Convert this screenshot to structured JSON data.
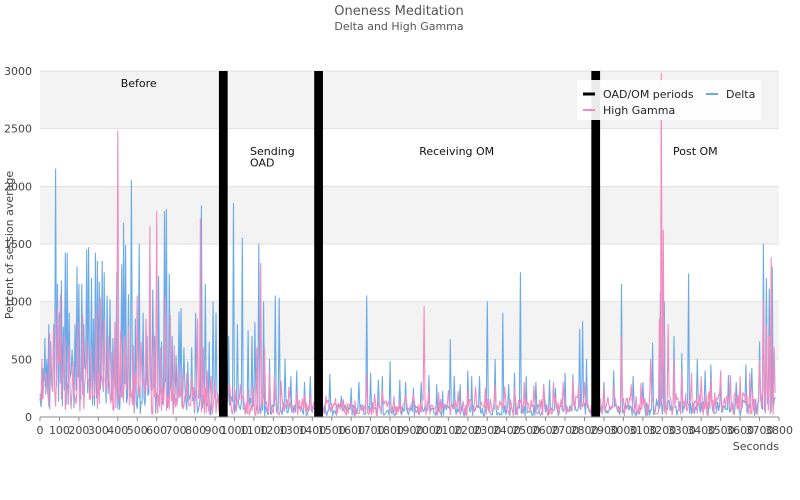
{
  "chart_data": {
    "type": "line",
    "title": "Oneness Meditation",
    "subtitle": "Delta and High Gamma",
    "xlabel": "Seconds",
    "ylabel": "Percent of session average",
    "xlim": [
      0,
      3800
    ],
    "ylim": [
      0,
      3000
    ],
    "x_ticks": [
      "0",
      "100",
      "200",
      "300",
      "400",
      "500",
      "600",
      "700",
      "800",
      "900",
      "1000",
      "1100",
      "1200",
      "1300",
      "1400",
      "1500",
      "1600",
      "1700",
      "1800",
      "1900",
      "2000",
      "2100",
      "2200",
      "2300",
      "2400",
      "2500",
      "2600",
      "2700",
      "2800",
      "2900",
      "3000",
      "3100",
      "3200",
      "3300",
      "3400",
      "3500",
      "3600",
      "3700",
      "3800"
    ],
    "y_ticks": [
      "0",
      "500",
      "1000",
      "1500",
      "2000",
      "2500",
      "3000"
    ],
    "legend": {
      "placement": "top-right",
      "entries": [
        {
          "label": "OAD/OM periods",
          "color": "#000000"
        },
        {
          "label": "Delta",
          "color": "#6aaae8"
        },
        {
          "label": "High Gamma",
          "color": "#f28bbf"
        }
      ]
    },
    "periods": [
      {
        "start": 920,
        "end": 965
      },
      {
        "start": 1410,
        "end": 1455
      },
      {
        "start": 2835,
        "end": 2880
      }
    ],
    "annotations": [
      {
        "text": "Before",
        "x": 415,
        "y": 2860
      },
      {
        "text": "Sending",
        "x": 1080,
        "y": 2270
      },
      {
        "text": "OAD",
        "x": 1080,
        "y": 2170
      },
      {
        "text": "Receiving OM",
        "x": 1950,
        "y": 2270
      },
      {
        "text": "Post OM",
        "x": 3255,
        "y": 2270
      }
    ],
    "series": [
      {
        "name": "Delta",
        "color": "#6aaae8",
        "baseline": [
          [
            0,
            120
          ],
          [
            200,
            230
          ],
          [
            400,
            200
          ],
          [
            600,
            170
          ],
          [
            800,
            110
          ],
          [
            1000,
            90
          ],
          [
            1200,
            65
          ],
          [
            1400,
            60
          ],
          [
            1600,
            55
          ],
          [
            1800,
            50
          ],
          [
            2000,
            50
          ],
          [
            2200,
            50
          ],
          [
            2400,
            55
          ],
          [
            2600,
            55
          ],
          [
            2800,
            60
          ],
          [
            3000,
            60
          ],
          [
            3200,
            80
          ],
          [
            3400,
            70
          ],
          [
            3600,
            70
          ],
          [
            3780,
            90
          ]
        ],
        "spikes": [
          [
            15,
            420
          ],
          [
            25,
            680
          ],
          [
            35,
            500
          ],
          [
            45,
            800
          ],
          [
            55,
            650
          ],
          [
            70,
            800
          ],
          [
            80,
            2150
          ],
          [
            90,
            1150
          ],
          [
            100,
            900
          ],
          [
            110,
            1180
          ],
          [
            120,
            780
          ],
          [
            130,
            1420
          ],
          [
            140,
            1420
          ],
          [
            150,
            900
          ],
          [
            165,
            580
          ],
          [
            180,
            800
          ],
          [
            190,
            1300
          ],
          [
            200,
            1150
          ],
          [
            215,
            1150
          ],
          [
            225,
            800
          ],
          [
            240,
            1450
          ],
          [
            250,
            1470
          ],
          [
            265,
            1200
          ],
          [
            275,
            850
          ],
          [
            285,
            1420
          ],
          [
            295,
            1350
          ],
          [
            305,
            1170
          ],
          [
            320,
            1350
          ],
          [
            330,
            1250
          ],
          [
            345,
            1050
          ],
          [
            360,
            1020
          ],
          [
            375,
            680
          ],
          [
            395,
            1250
          ],
          [
            420,
            1320
          ],
          [
            430,
            1680
          ],
          [
            440,
            1490
          ],
          [
            455,
            1060
          ],
          [
            470,
            2050
          ],
          [
            490,
            850
          ],
          [
            510,
            1500
          ],
          [
            530,
            900
          ],
          [
            550,
            700
          ],
          [
            565,
            1120
          ],
          [
            580,
            1100
          ],
          [
            590,
            700
          ],
          [
            610,
            1220
          ],
          [
            625,
            650
          ],
          [
            640,
            1780
          ],
          [
            650,
            1800
          ],
          [
            665,
            1240
          ],
          [
            680,
            700
          ],
          [
            700,
            530
          ],
          [
            715,
            910
          ],
          [
            725,
            940
          ],
          [
            740,
            600
          ],
          [
            760,
            480
          ],
          [
            780,
            600
          ],
          [
            800,
            900
          ],
          [
            830,
            1830
          ],
          [
            850,
            1150
          ],
          [
            870,
            650
          ],
          [
            890,
            1000
          ],
          [
            905,
            900
          ],
          [
            930,
            780
          ],
          [
            950,
            1250
          ],
          [
            970,
            700
          ],
          [
            995,
            1850
          ],
          [
            1015,
            800
          ],
          [
            1040,
            1550
          ],
          [
            1070,
            750
          ],
          [
            1090,
            700
          ],
          [
            1105,
            820
          ],
          [
            1125,
            1500
          ],
          [
            1150,
            1000
          ],
          [
            1180,
            500
          ],
          [
            1210,
            1050
          ],
          [
            1230,
            1030
          ],
          [
            1260,
            500
          ],
          [
            1290,
            350
          ],
          [
            1320,
            400
          ],
          [
            1360,
            300
          ],
          [
            1390,
            350
          ],
          [
            1420,
            430
          ],
          [
            1490,
            370
          ],
          [
            1550,
            180
          ],
          [
            1600,
            250
          ],
          [
            1640,
            300
          ],
          [
            1680,
            1050
          ],
          [
            1700,
            380
          ],
          [
            1740,
            320
          ],
          [
            1760,
            350
          ],
          [
            1800,
            480
          ],
          [
            1850,
            320
          ],
          [
            1880,
            300
          ],
          [
            1920,
            250
          ],
          [
            1960,
            300
          ],
          [
            2000,
            360
          ],
          [
            2040,
            280
          ],
          [
            2070,
            220
          ],
          [
            2110,
            670
          ],
          [
            2130,
            350
          ],
          [
            2160,
            280
          ],
          [
            2200,
            400
          ],
          [
            2220,
            350
          ],
          [
            2260,
            350
          ],
          [
            2300,
            1000
          ],
          [
            2340,
            500
          ],
          [
            2380,
            900
          ],
          [
            2410,
            280
          ],
          [
            2440,
            380
          ],
          [
            2470,
            1250
          ],
          [
            2500,
            350
          ],
          [
            2550,
            300
          ],
          [
            2590,
            280
          ],
          [
            2620,
            320
          ],
          [
            2650,
            250
          ],
          [
            2700,
            380
          ],
          [
            2740,
            370
          ],
          [
            2775,
            760
          ],
          [
            2790,
            830
          ],
          [
            2810,
            500
          ],
          [
            2900,
            300
          ],
          [
            2950,
            400
          ],
          [
            2990,
            1150
          ],
          [
            3050,
            350
          ],
          [
            3100,
            300
          ],
          [
            3150,
            640
          ],
          [
            3190,
            1080
          ],
          [
            3210,
            1000
          ],
          [
            3260,
            700
          ],
          [
            3300,
            550
          ],
          [
            3335,
            1240
          ],
          [
            3380,
            500
          ],
          [
            3420,
            400
          ],
          [
            3450,
            450
          ],
          [
            3500,
            380
          ],
          [
            3540,
            360
          ],
          [
            3580,
            300
          ],
          [
            3630,
            450
          ],
          [
            3660,
            420
          ],
          [
            3700,
            650
          ],
          [
            3720,
            1500
          ],
          [
            3735,
            1200
          ],
          [
            3750,
            1110
          ],
          [
            3765,
            1300
          ]
        ]
      },
      {
        "name": "High Gamma",
        "color": "#f28bbf",
        "baseline": [
          [
            0,
            150
          ],
          [
            100,
            250
          ],
          [
            200,
            200
          ],
          [
            400,
            200
          ],
          [
            600,
            160
          ],
          [
            800,
            140
          ],
          [
            1000,
            110
          ],
          [
            1200,
            90
          ],
          [
            1400,
            75
          ],
          [
            1600,
            70
          ],
          [
            1800,
            70
          ],
          [
            2000,
            75
          ],
          [
            2200,
            80
          ],
          [
            2400,
            80
          ],
          [
            2600,
            85
          ],
          [
            2800,
            90
          ],
          [
            3000,
            85
          ],
          [
            3200,
            100
          ],
          [
            3400,
            110
          ],
          [
            3600,
            110
          ],
          [
            3780,
            150
          ]
        ],
        "spikes": [
          [
            10,
            500
          ],
          [
            30,
            380
          ],
          [
            50,
            720
          ],
          [
            70,
            800
          ],
          [
            90,
            950
          ],
          [
            105,
            1060
          ],
          [
            125,
            700
          ],
          [
            150,
            620
          ],
          [
            170,
            480
          ],
          [
            195,
            820
          ],
          [
            220,
            880
          ],
          [
            240,
            660
          ],
          [
            265,
            580
          ],
          [
            290,
            940
          ],
          [
            310,
            1030
          ],
          [
            330,
            850
          ],
          [
            350,
            700
          ],
          [
            370,
            560
          ],
          [
            385,
            820
          ],
          [
            400,
            2480
          ],
          [
            415,
            750
          ],
          [
            435,
            700
          ],
          [
            455,
            780
          ],
          [
            480,
            620
          ],
          [
            500,
            1050
          ],
          [
            520,
            650
          ],
          [
            545,
            850
          ],
          [
            565,
            1650
          ],
          [
            585,
            700
          ],
          [
            600,
            1780
          ],
          [
            620,
            600
          ],
          [
            645,
            1050
          ],
          [
            670,
            880
          ],
          [
            690,
            620
          ],
          [
            710,
            450
          ],
          [
            730,
            400
          ],
          [
            755,
            380
          ],
          [
            780,
            350
          ],
          [
            810,
            850
          ],
          [
            825,
            1720
          ],
          [
            840,
            600
          ],
          [
            860,
            400
          ],
          [
            880,
            350
          ],
          [
            900,
            300
          ],
          [
            945,
            330
          ],
          [
            975,
            290
          ],
          [
            1000,
            260
          ],
          [
            1030,
            280
          ],
          [
            1070,
            250
          ],
          [
            1095,
            260
          ],
          [
            1115,
            600
          ],
          [
            1135,
            1330
          ],
          [
            1155,
            600
          ],
          [
            1180,
            400
          ],
          [
            1205,
            350
          ],
          [
            1240,
            310
          ],
          [
            1280,
            260
          ],
          [
            1320,
            220
          ],
          [
            1360,
            200
          ],
          [
            1390,
            180
          ],
          [
            1470,
            180
          ],
          [
            1520,
            160
          ],
          [
            1560,
            150
          ],
          [
            1620,
            140
          ],
          [
            1680,
            370
          ],
          [
            1720,
            200
          ],
          [
            1760,
            230
          ],
          [
            1820,
            180
          ],
          [
            1880,
            190
          ],
          [
            1920,
            200
          ],
          [
            1975,
            960
          ],
          [
            2000,
            220
          ],
          [
            2050,
            210
          ],
          [
            2100,
            230
          ],
          [
            2150,
            220
          ],
          [
            2200,
            240
          ],
          [
            2240,
            260
          ],
          [
            2290,
            250
          ],
          [
            2340,
            280
          ],
          [
            2390,
            260
          ],
          [
            2440,
            250
          ],
          [
            2490,
            300
          ],
          [
            2540,
            270
          ],
          [
            2590,
            280
          ],
          [
            2640,
            300
          ],
          [
            2690,
            300
          ],
          [
            2740,
            320
          ],
          [
            2770,
            270
          ],
          [
            2800,
            300
          ],
          [
            2900,
            250
          ],
          [
            2950,
            260
          ],
          [
            2990,
            700
          ],
          [
            3040,
            280
          ],
          [
            3090,
            290
          ],
          [
            3140,
            500
          ],
          [
            3185,
            850
          ],
          [
            3195,
            2980
          ],
          [
            3205,
            1620
          ],
          [
            3230,
            800
          ],
          [
            3260,
            500
          ],
          [
            3300,
            400
          ],
          [
            3350,
            380
          ],
          [
            3400,
            350
          ],
          [
            3450,
            330
          ],
          [
            3500,
            400
          ],
          [
            3550,
            360
          ],
          [
            3600,
            350
          ],
          [
            3650,
            380
          ],
          [
            3700,
            500
          ],
          [
            3720,
            1000
          ],
          [
            3735,
            800
          ],
          [
            3750,
            700
          ],
          [
            3760,
            1380
          ],
          [
            3775,
            600
          ]
        ]
      }
    ]
  }
}
